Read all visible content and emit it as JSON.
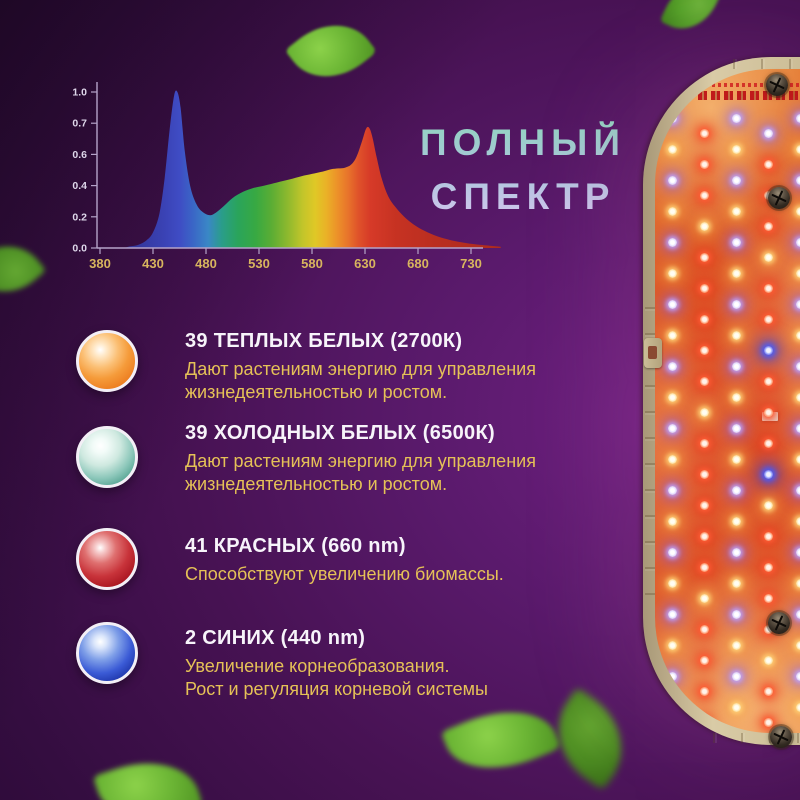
{
  "title": {
    "line1": "ПОЛНЫЙ",
    "line2": "СПЕКТР"
  },
  "chart_data": {
    "type": "area",
    "title": "",
    "xlabel": "",
    "ylabel": "",
    "x_ticks": [
      "380",
      "430",
      "480",
      "530",
      "580",
      "630",
      "680",
      "730"
    ],
    "y_ticks": [
      "0.0",
      "0.2",
      "0.4",
      "0.6",
      "0.7",
      "1.0"
    ],
    "xlim": [
      380,
      760
    ],
    "ylim": [
      0,
      1.05
    ],
    "points": [
      [
        380,
        0
      ],
      [
        400,
        0
      ],
      [
        408,
        0.01
      ],
      [
        416,
        0.02
      ],
      [
        424,
        0.05
      ],
      [
        430,
        0.1
      ],
      [
        436,
        0.22
      ],
      [
        441,
        0.45
      ],
      [
        446,
        0.78
      ],
      [
        450,
        0.98
      ],
      [
        453,
        1.0
      ],
      [
        456,
        0.9
      ],
      [
        460,
        0.62
      ],
      [
        465,
        0.4
      ],
      [
        471,
        0.28
      ],
      [
        477,
        0.23
      ],
      [
        484,
        0.21
      ],
      [
        490,
        0.23
      ],
      [
        497,
        0.27
      ],
      [
        505,
        0.32
      ],
      [
        515,
        0.36
      ],
      [
        525,
        0.385
      ],
      [
        535,
        0.4
      ],
      [
        547,
        0.42
      ],
      [
        559,
        0.44
      ],
      [
        570,
        0.46
      ],
      [
        580,
        0.475
      ],
      [
        590,
        0.49
      ],
      [
        598,
        0.505
      ],
      [
        605,
        0.51
      ],
      [
        611,
        0.515
      ],
      [
        617,
        0.535
      ],
      [
        622,
        0.585
      ],
      [
        627,
        0.68
      ],
      [
        631,
        0.765
      ],
      [
        634,
        0.77
      ],
      [
        637,
        0.71
      ],
      [
        641,
        0.58
      ],
      [
        646,
        0.44
      ],
      [
        652,
        0.33
      ],
      [
        659,
        0.26
      ],
      [
        667,
        0.2
      ],
      [
        676,
        0.15
      ],
      [
        686,
        0.11
      ],
      [
        698,
        0.075
      ],
      [
        711,
        0.05
      ],
      [
        725,
        0.032
      ],
      [
        739,
        0.02
      ],
      [
        752,
        0.012
      ],
      [
        758,
        0.008
      ]
    ],
    "gradient": [
      {
        "nm": 415,
        "c": "#34379d"
      },
      {
        "nm": 440,
        "c": "#3a42b4"
      },
      {
        "nm": 455,
        "c": "#3f4cc4"
      },
      {
        "nm": 468,
        "c": "#3a66c6"
      },
      {
        "nm": 482,
        "c": "#3a87c6"
      },
      {
        "nm": 495,
        "c": "#2a9d8a"
      },
      {
        "nm": 510,
        "c": "#2aa45b"
      },
      {
        "nm": 527,
        "c": "#38a942"
      },
      {
        "nm": 542,
        "c": "#5bad34"
      },
      {
        "nm": 557,
        "c": "#8eb92e"
      },
      {
        "nm": 571,
        "c": "#c1c52a"
      },
      {
        "nm": 583,
        "c": "#e0c826"
      },
      {
        "nm": 594,
        "c": "#eab027"
      },
      {
        "nm": 604,
        "c": "#ec9129"
      },
      {
        "nm": 614,
        "c": "#e8742b"
      },
      {
        "nm": 624,
        "c": "#df512a"
      },
      {
        "nm": 635,
        "c": "#d63a28"
      },
      {
        "nm": 660,
        "c": "#c63222"
      },
      {
        "nm": 700,
        "c": "#b92e20"
      },
      {
        "nm": 758,
        "c": "#ad2b1e"
      }
    ]
  },
  "led_types": [
    {
      "icon": "warm-white-led-sphere",
      "icon_color": "#f2933c",
      "heading": "39 ТЕПЛЫХ БЕЛЫХ (2700К)",
      "desc_lines": [
        "Дают растениям энергию для управления",
        "жизнедеятельностью и ростом."
      ]
    },
    {
      "icon": "cool-white-led-sphere",
      "icon_color": "#5aa99a",
      "heading": "39 ХОЛОДНЫХ БЕЛЫХ (6500К)",
      "desc_lines": [
        "Дают растениям энергию для управления",
        "жизнедеятельностью и ростом."
      ]
    },
    {
      "icon": "red-led-sphere",
      "icon_color": "#bb2430",
      "heading": "41 КРАСНЫХ (660 nm)",
      "desc_lines": [
        "Способствуют увеличению биомассы."
      ]
    },
    {
      "icon": "blue-led-sphere",
      "icon_color": "#2c4ecf",
      "heading": "2 СИНИХ (440 nm)",
      "desc_lines": [
        "Увеличение корнеобразования.",
        "Рост и регуляция корневой системы"
      ]
    }
  ],
  "lamp": {
    "type": "led-grow-light-panel",
    "frame_color": "#d3c49e",
    "pcb_glow_color": "#dd5a2a",
    "led_dot_colors": {
      "red": "#ff4b2e",
      "violet": "#b9a4ff",
      "warm_white": "#ffcf7a",
      "blue": "#2b46ff"
    },
    "screw_icon": "phillips-screw"
  },
  "colors": {
    "background_purple": "#5a1a6c",
    "heading_text": "#f7f4fa",
    "description_text": "#e5c157",
    "axis_tick_label_x": "#d8b55e",
    "axis_tick_label_y": "#ded7ea",
    "title_gradient_top": "#8fd4bd",
    "title_gradient_bottom": "#d6c5f0",
    "leaf_green": "#6cb635"
  }
}
